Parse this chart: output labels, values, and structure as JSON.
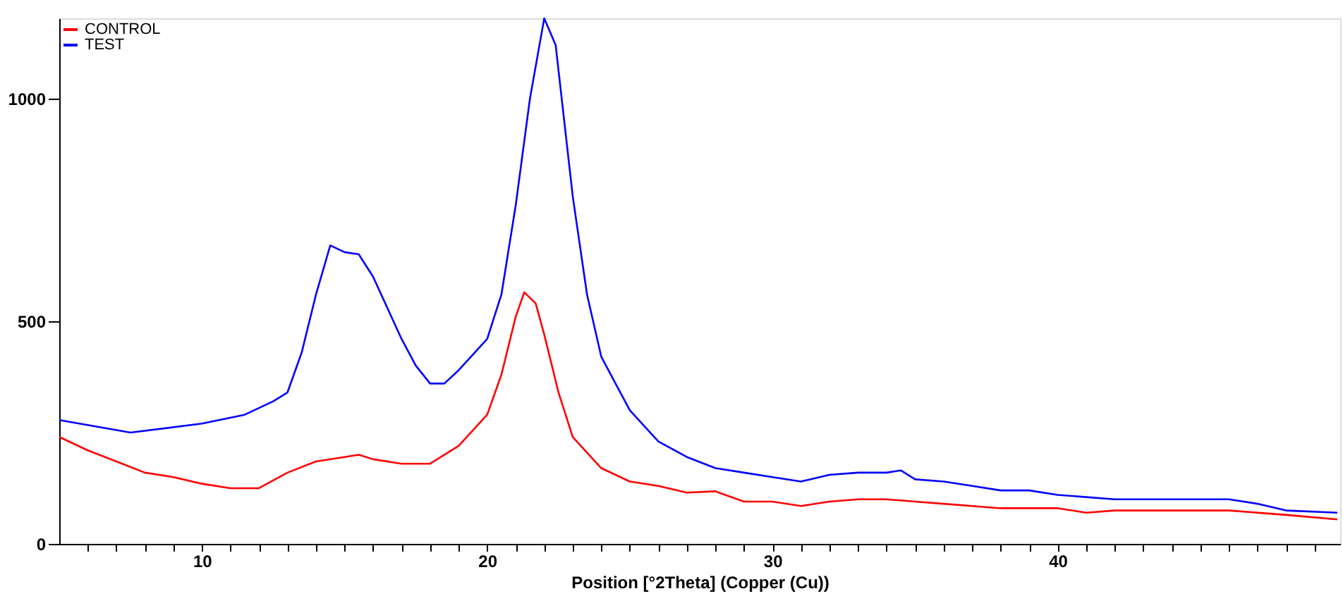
{
  "chart_data": {
    "type": "line",
    "xlabel": "Position [°2Theta] (Copper (Cu))",
    "xlim": [
      5,
      49.9
    ],
    "ylim": [
      0,
      1180
    ],
    "xticks": [
      {
        "value": 6,
        "label": null
      },
      {
        "value": 7,
        "label": null
      },
      {
        "value": 8,
        "label": null
      },
      {
        "value": 9,
        "label": null
      },
      10,
      {
        "value": 11,
        "label": null
      },
      {
        "value": 12,
        "label": null
      },
      {
        "value": 13,
        "label": null
      },
      {
        "value": 14,
        "label": null
      },
      {
        "value": 15,
        "label": null
      },
      {
        "value": 16,
        "label": null
      },
      {
        "value": 17,
        "label": null
      },
      {
        "value": 18,
        "label": null
      },
      {
        "value": 19,
        "label": null
      },
      20,
      {
        "value": 21,
        "label": null
      },
      {
        "value": 22,
        "label": null
      },
      {
        "value": 23,
        "label": null
      },
      {
        "value": 24,
        "label": null
      },
      {
        "value": 25,
        "label": null
      },
      {
        "value": 26,
        "label": null
      },
      {
        "value": 27,
        "label": null
      },
      {
        "value": 28,
        "label": null
      },
      {
        "value": 29,
        "label": null
      },
      30,
      {
        "value": 31,
        "label": null
      },
      {
        "value": 32,
        "label": null
      },
      {
        "value": 33,
        "label": null
      },
      {
        "value": 34,
        "label": null
      },
      {
        "value": 35,
        "label": null
      },
      {
        "value": 36,
        "label": null
      },
      {
        "value": 37,
        "label": null
      },
      {
        "value": 38,
        "label": null
      },
      {
        "value": 39,
        "label": null
      },
      40,
      {
        "value": 41,
        "label": null
      },
      {
        "value": 42,
        "label": null
      },
      {
        "value": 43,
        "label": null
      },
      {
        "value": 44,
        "label": null
      },
      {
        "value": 45,
        "label": null
      },
      {
        "value": 46,
        "label": null
      },
      {
        "value": 47,
        "label": null
      },
      {
        "value": 48,
        "label": null
      },
      {
        "value": 49,
        "label": null
      }
    ],
    "yticks": [
      0,
      500,
      1000
    ],
    "grid": false,
    "legend": "top left",
    "marker": "none",
    "line_style": "solid",
    "series": [
      {
        "name": "CONTROL",
        "color": "#ff0000",
        "x": [
          5,
          6,
          7,
          8,
          9,
          10,
          11,
          12,
          13,
          14,
          15,
          15.5,
          16,
          17,
          18,
          19,
          20,
          20.5,
          21,
          21.3,
          21.7,
          22,
          22.5,
          23,
          24,
          25,
          26,
          27,
          28,
          29,
          30,
          31,
          32,
          33,
          34,
          35,
          36,
          37,
          38,
          39,
          40,
          41,
          42,
          44,
          46,
          48,
          49.8
        ],
        "values": [
          240,
          210,
          185,
          160,
          150,
          135,
          125,
          125,
          160,
          185,
          195,
          200,
          190,
          180,
          180,
          220,
          290,
          380,
          510,
          565,
          540,
          470,
          340,
          240,
          170,
          140,
          130,
          115,
          118,
          95,
          95,
          85,
          95,
          100,
          100,
          95,
          90,
          85,
          80,
          80,
          80,
          70,
          75,
          75,
          75,
          65,
          55
        ]
      },
      {
        "name": "TEST",
        "color": "#0000ff",
        "x": [
          5,
          7.5,
          10,
          11.5,
          12.5,
          13,
          13.5,
          14,
          14.5,
          15,
          15.5,
          16,
          17,
          17.5,
          18,
          18.5,
          19,
          20,
          20.5,
          21,
          21.5,
          22,
          22.4,
          23,
          23.5,
          24,
          25,
          26,
          27,
          28,
          29,
          30,
          31,
          32,
          33,
          34,
          34.5,
          35,
          36,
          37,
          38,
          39,
          40,
          42,
          44,
          46,
          47,
          48,
          49.8
        ],
        "values": [
          278,
          250,
          270,
          290,
          320,
          340,
          430,
          560,
          670,
          655,
          650,
          600,
          460,
          400,
          360,
          360,
          390,
          460,
          560,
          760,
          1000,
          1180,
          1120,
          780,
          560,
          420,
          300,
          230,
          195,
          170,
          160,
          150,
          140,
          155,
          160,
          160,
          165,
          145,
          140,
          130,
          120,
          120,
          110,
          100,
          100,
          100,
          90,
          75,
          70
        ]
      }
    ]
  }
}
